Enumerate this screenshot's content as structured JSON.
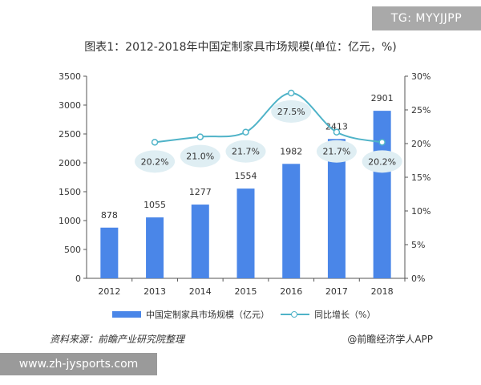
{
  "tag_badge": "TG: MYYJJPP",
  "source_note": "资料来源：前瞻产业研究院整理",
  "credit": "@前瞻经济学人APP",
  "url_badge": "www.zh-jysports.com",
  "colors": {
    "bar": "#4a86e8",
    "line": "#4fb3c8",
    "bubble": "#dfeef3"
  },
  "chart_data": {
    "type": "bar",
    "title": "图表1：2012-2018年中国定制家具市场规模(单位：亿元，%)",
    "categories": [
      "2012",
      "2013",
      "2014",
      "2015",
      "2016",
      "2017",
      "2018"
    ],
    "series": [
      {
        "name": "中国定制家具市场规模（亿元）",
        "type": "bar",
        "axis": "left",
        "values": [
          878,
          1055,
          1277,
          1554,
          1982,
          2413,
          2901
        ],
        "labels": [
          "878",
          "1055",
          "1277",
          "1554",
          "1982",
          "2413",
          "2901"
        ]
      },
      {
        "name": "同比增长（%）",
        "type": "line",
        "axis": "right",
        "x": [
          "2013",
          "2014",
          "2015",
          "2016",
          "2017",
          "2018"
        ],
        "values": [
          20.2,
          21.0,
          21.7,
          27.5,
          21.7,
          20.2
        ],
        "labels": [
          "20.2%",
          "21.0%",
          "21.7%",
          "27.5%",
          "21.7%",
          "20.2%"
        ]
      }
    ],
    "ylim_left": [
      0,
      3500
    ],
    "yticks_left": [
      "0",
      "500",
      "1000",
      "1500",
      "2000",
      "2500",
      "3000",
      "3500"
    ],
    "ylim_right": [
      0,
      30
    ],
    "yticks_right": [
      "0%",
      "5%",
      "10%",
      "15%",
      "20%",
      "25%",
      "30%"
    ],
    "legend_position": "bottom"
  }
}
